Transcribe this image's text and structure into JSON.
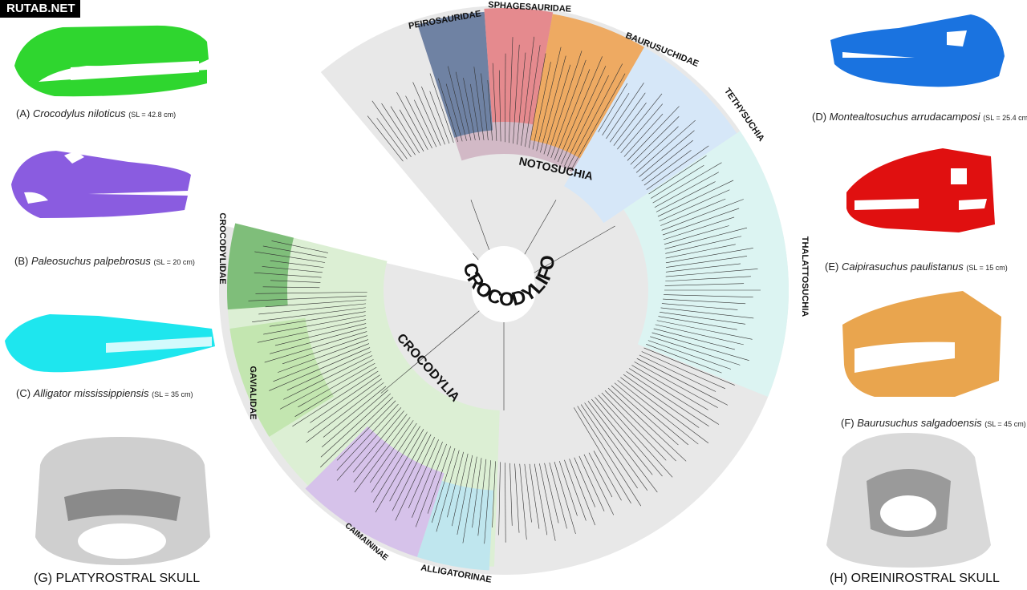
{
  "watermark": "RUTAB.NET",
  "specimens": [
    {
      "letter": "(A)",
      "name": "Crocodylus niloticus",
      "size": "(SL = 42.8 cm)",
      "color": "#2fd62f"
    },
    {
      "letter": "(B)",
      "name": "Paleosuchus palpebrosus",
      "size": "(SL = 20 cm)",
      "color": "#8a5ce0"
    },
    {
      "letter": "(C)",
      "name": "Alligator mississippiensis",
      "size": "(SL = 35 cm)",
      "color": "#1ee6ee"
    },
    {
      "letter": "(D)",
      "name": "Montealtosuchus arrudacamposi",
      "size": "(SL = 25.4 cm)",
      "color": "#1a73e0"
    },
    {
      "letter": "(E)",
      "name": "Caipirasuchus paulistanus",
      "size": "(SL = 15 cm)",
      "color": "#e01010"
    },
    {
      "letter": "(F)",
      "name": "Baurusuchus salgadoensis",
      "size": "(SL = 45 cm)",
      "color": "#e9a54e"
    }
  ],
  "skull_views": [
    {
      "label": "(G) PLATYROSTRAL SKULL"
    },
    {
      "label": "(H) OREINIROSTRAL SKULL"
    }
  ],
  "tree": {
    "root_label": "CROCODYLIFORMES",
    "clades": {
      "peirosauridae": {
        "label": "PEIROSAURIDAE",
        "color": "#6f82a3"
      },
      "sphagesauridae": {
        "label": "SPHAGESAURIDAE",
        "color": "#e58a8e"
      },
      "baurusuchidae": {
        "label": "BAURUSUCHIDAE",
        "color": "#eeaa62"
      },
      "notosuchia": {
        "label": "NOTOSUCHIA",
        "color": "#d2b9c6"
      },
      "tethysuchia": {
        "label": "TETHYSUCHIA",
        "color": "#d6e7f8"
      },
      "thalattosuchia": {
        "label": "THALATTOSUCHIA",
        "color": "#dcf4f2"
      },
      "crocodylia": {
        "label": "CROCODYLIA",
        "color": "#dcefd4"
      },
      "crocodylidae": {
        "label": "CROCODYLIDAE",
        "color": "#7fbe7a"
      },
      "gavialidae": {
        "label": "GAVIALIDAE",
        "color": "#c3e6b0"
      },
      "caimaninae": {
        "label": "CAIMAININAE",
        "color": "#d6c2ea"
      },
      "alligatorinae": {
        "label": "ALLIGATORINAE",
        "color": "#bfe6ee"
      }
    }
  }
}
